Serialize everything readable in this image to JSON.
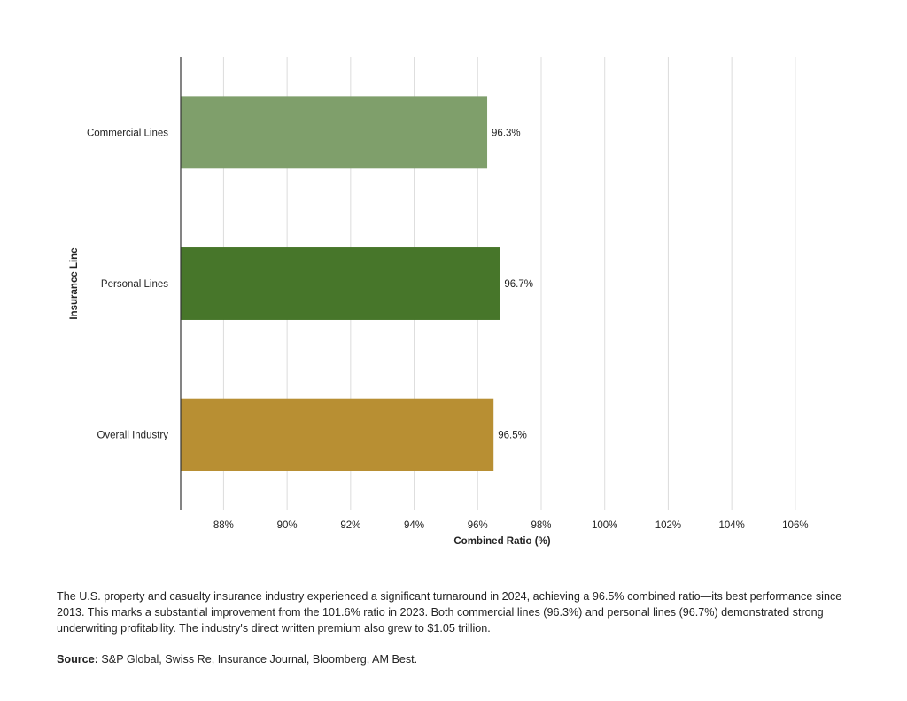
{
  "chart_data": {
    "type": "bar",
    "orientation": "horizontal",
    "categories": [
      "Commercial Lines",
      "Personal Lines",
      "Overall Industry"
    ],
    "values": [
      96.3,
      96.7,
      96.5
    ],
    "value_labels": [
      "96.3%",
      "96.7%",
      "96.5%"
    ],
    "colors": [
      "#7f9f6b",
      "#47762a",
      "#b88f33"
    ],
    "xlabel": "Combined Ratio (%)",
    "ylabel": "Insurance Line",
    "xlim": [
      86.65,
      107.9
    ],
    "xticks": [
      88,
      90,
      92,
      94,
      96,
      98,
      100,
      102,
      104,
      106
    ],
    "xtick_labels": [
      "88%",
      "90%",
      "92%",
      "94%",
      "96%",
      "98%",
      "100%",
      "102%",
      "104%",
      "106%"
    ],
    "grid": true
  },
  "caption": {
    "text": "The U.S. property and casualty insurance industry experienced a significant turnaround in 2024, achieving a 96.5% combined ratio—its best performance since 2013. This marks a substantial improvement from the 101.6% ratio in 2023. Both commercial lines (96.3%) and personal lines (96.7%) demonstrated strong underwriting profitability. The industry's direct written premium also grew to $1.05 trillion."
  },
  "source": {
    "label": "Source:",
    "text": "S&P Global, Swiss Re, Insurance Journal, Bloomberg, AM Best."
  }
}
